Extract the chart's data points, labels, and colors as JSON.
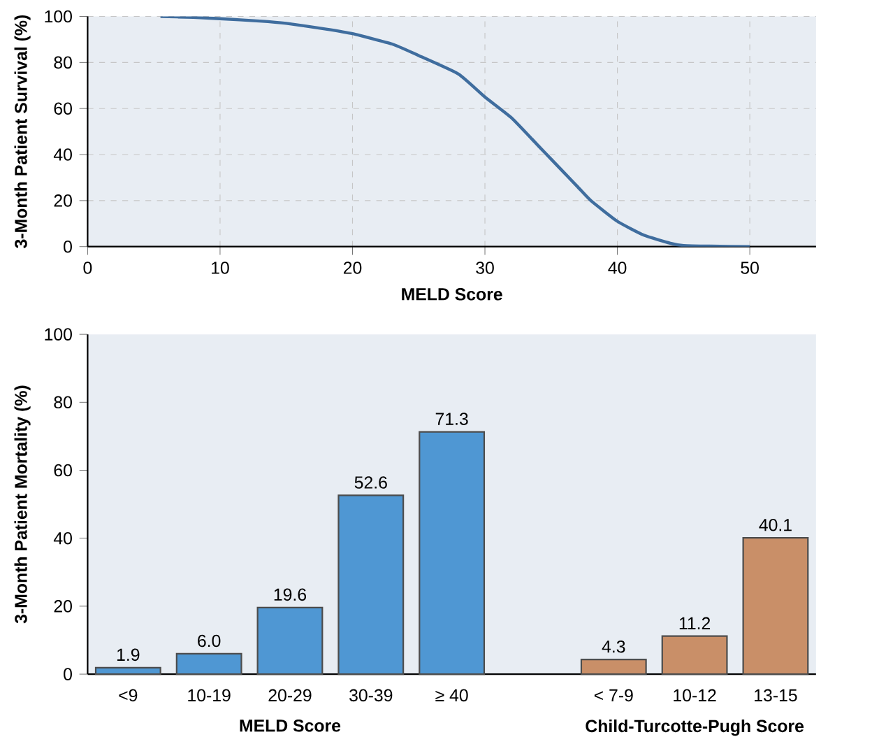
{
  "chart_data": [
    {
      "type": "line",
      "xlabel": "MELD Score",
      "ylabel": "3-Month Patient Survival (%)",
      "xlim": [
        0,
        55
      ],
      "ylim": [
        0,
        100
      ],
      "xticks": [
        0,
        10,
        20,
        30,
        40,
        50
      ],
      "yticks": [
        0,
        20,
        40,
        60,
        80,
        100
      ],
      "grid": true,
      "marker": "none",
      "line_style": "solid",
      "series": [
        {
          "color": "#3f6d9e",
          "x": [
            5.5,
            8,
            10,
            13,
            15,
            18,
            20,
            23,
            25,
            28,
            30,
            32,
            34,
            35,
            37,
            38,
            40,
            42,
            44,
            45,
            47,
            50
          ],
          "values": [
            100,
            99.6,
            99,
            98,
            97,
            94.5,
            92.5,
            88,
            83,
            75,
            65,
            56,
            44,
            38,
            26,
            20,
            11,
            5,
            1.5,
            0.5,
            0.2,
            0
          ]
        }
      ]
    },
    {
      "type": "bar",
      "xlabel": "MELD Score",
      "ylabel": "3-Month Patient Mortality (%)",
      "ylim": [
        0,
        100
      ],
      "yticks": [
        0,
        20,
        40,
        60,
        80,
        100
      ],
      "grid": false,
      "categories": [
        "<9",
        "10-19",
        "20-29",
        "30-39",
        "≥ 40",
        null,
        "< 7-9",
        "10-12",
        "13-15"
      ],
      "values": [
        1.9,
        6.0,
        19.6,
        52.6,
        71.3,
        null,
        4.3,
        11.2,
        40.1
      ],
      "value_labels": [
        "1.9",
        "6.0",
        "19.6",
        "52.6",
        "71.3",
        null,
        "4.3",
        "11.2",
        "40.1"
      ],
      "colors": [
        "#4f97d3",
        "#4f97d3",
        "#4f97d3",
        "#4f97d3",
        "#4f97d3",
        null,
        "#c98f68",
        "#c98f68",
        "#c98f68"
      ],
      "annotations": [
        "Child-Turcotte-Pugh Score"
      ]
    }
  ]
}
